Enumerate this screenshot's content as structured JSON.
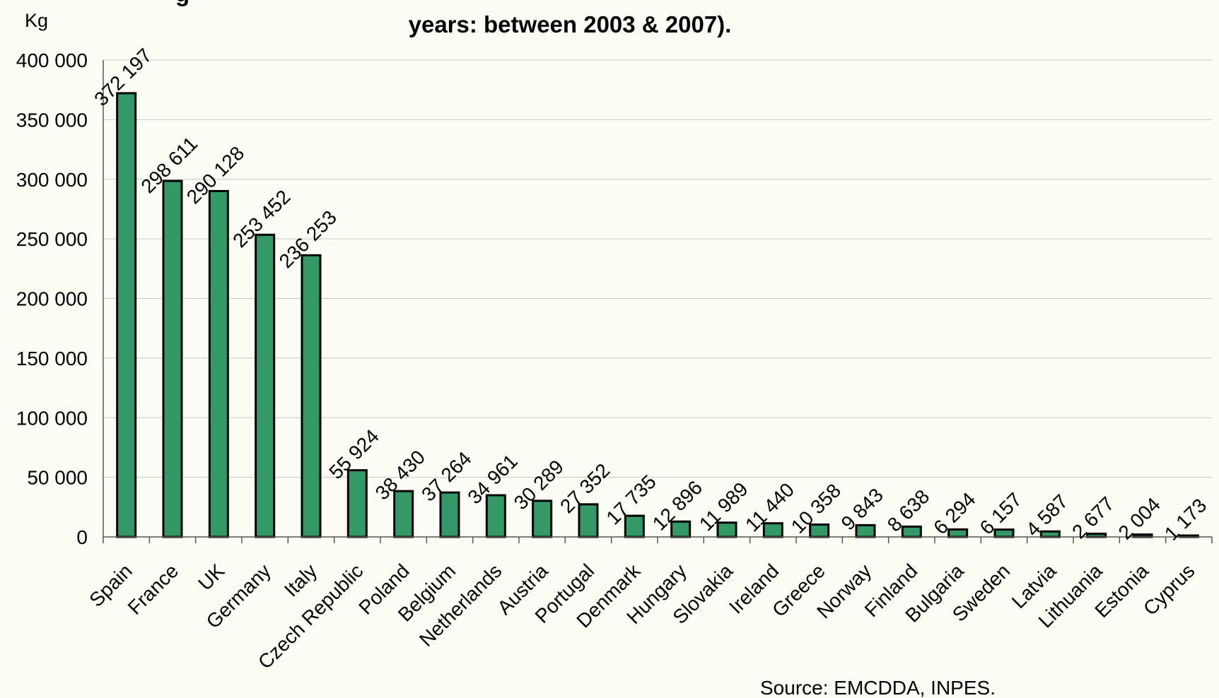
{
  "chart_data": {
    "type": "bar",
    "title_lines": [
      "g",
      "years: between 2003 & 2007)."
    ],
    "ylabel": "Kg",
    "xlabel": "",
    "ylim": [
      0,
      400000
    ],
    "yticks": [
      0,
      50000,
      100000,
      150000,
      200000,
      250000,
      300000,
      350000,
      400000
    ],
    "ytick_labels": [
      "0",
      "50 000",
      "100 000",
      "150 000",
      "200 000",
      "250 000",
      "300 000",
      "350 000",
      "400 000"
    ],
    "grid": true,
    "bar_color": "#339966",
    "categories": [
      "Spain",
      "France",
      "UK",
      "Germany",
      "Italy",
      "Czech Republic",
      "Poland",
      "Belgium",
      "Netherlands",
      "Austria",
      "Portugal",
      "Denmark",
      "Hungary",
      "Slovakia",
      "Ireland",
      "Greece",
      "Norway",
      "Finland",
      "Bulgaria",
      "Sweden",
      "Latvia",
      "Lithuania",
      "Estonia",
      "Cyprus"
    ],
    "values": [
      372197,
      298611,
      290128,
      253452,
      236253,
      55924,
      38430,
      37264,
      34961,
      30289,
      27352,
      17735,
      12896,
      11989,
      11440,
      10358,
      9843,
      8638,
      6294,
      6157,
      4587,
      2677,
      2004,
      1173
    ],
    "value_labels": [
      "372 197",
      "298 611",
      "290 128",
      "253 452",
      "236 253",
      "55 924",
      "38 430",
      "37 264",
      "34 961",
      "30 289",
      "27 352",
      "17 735",
      "12 896",
      "11 989",
      "11 440",
      "10 358",
      "9 843",
      "8 638",
      "6 294",
      "6 157",
      "4 587",
      "2 677",
      "2 004",
      "1 173"
    ],
    "source": "Source: EMCDDA, INPES."
  }
}
